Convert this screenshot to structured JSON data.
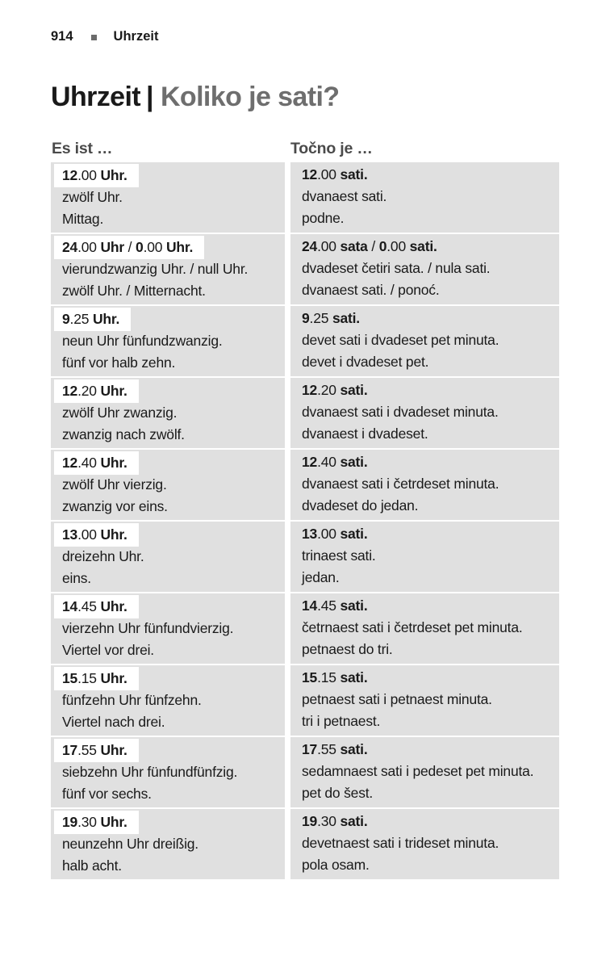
{
  "colors": {
    "text": "#1a1a1a",
    "title_accent": "#6e6e6e",
    "cell_bg": "#e0e0e0",
    "header_text": "#4a4a4a",
    "bullet": "#6b6b6b"
  },
  "running_header": {
    "page_number": "914",
    "section": "Uhrzeit"
  },
  "title": {
    "german": "Uhrzeit",
    "separator": "|",
    "croatian": "Koliko je sati?"
  },
  "column_headers": {
    "german": "Es ist …",
    "croatian": "Točno je …"
  },
  "table": {
    "rows": [
      {
        "de": {
          "time": [
            {
              "t": "12",
              "b": true
            },
            {
              "t": ".00 ",
              "b": false
            },
            {
              "t": "Uhr.",
              "b": true
            }
          ],
          "lines": [
            "zwölf Uhr.",
            "Mittag."
          ]
        },
        "hr": {
          "time": [
            {
              "t": "12",
              "b": true
            },
            {
              "t": ".00 ",
              "b": false
            },
            {
              "t": "sati.",
              "b": true
            }
          ],
          "lines": [
            "dvanaest sati.",
            "podne."
          ]
        }
      },
      {
        "de": {
          "time": [
            {
              "t": "24",
              "b": true
            },
            {
              "t": ".00 ",
              "b": false
            },
            {
              "t": "Uhr",
              "b": true
            },
            {
              "t": " / ",
              "b": false
            },
            {
              "t": "0",
              "b": true
            },
            {
              "t": ".00 ",
              "b": false
            },
            {
              "t": "Uhr.",
              "b": true
            }
          ],
          "lines": [
            "vierundzwanzig Uhr. / null Uhr.",
            "zwölf Uhr. / Mitternacht."
          ]
        },
        "hr": {
          "time": [
            {
              "t": "24",
              "b": true
            },
            {
              "t": ".00 ",
              "b": false
            },
            {
              "t": "sata",
              "b": true
            },
            {
              "t": " / ",
              "b": false
            },
            {
              "t": "0",
              "b": true
            },
            {
              "t": ".00 ",
              "b": false
            },
            {
              "t": "sati.",
              "b": true
            }
          ],
          "lines": [
            "dvadeset četiri sata. / nula sati.",
            "dvanaest sati. / ponoć."
          ]
        }
      },
      {
        "de": {
          "time": [
            {
              "t": "9",
              "b": true
            },
            {
              "t": ".25 ",
              "b": false
            },
            {
              "t": "Uhr.",
              "b": true
            }
          ],
          "lines": [
            "neun Uhr fünfundzwanzig.",
            "fünf vor halb zehn."
          ]
        },
        "hr": {
          "time": [
            {
              "t": "9",
              "b": true
            },
            {
              "t": ".25 ",
              "b": false
            },
            {
              "t": "sati.",
              "b": true
            }
          ],
          "lines": [
            "devet sati i dvadeset pet minuta.",
            "devet i dvadeset pet."
          ]
        }
      },
      {
        "de": {
          "time": [
            {
              "t": "12",
              "b": true
            },
            {
              "t": ".20 ",
              "b": false
            },
            {
              "t": "Uhr.",
              "b": true
            }
          ],
          "lines": [
            "zwölf Uhr zwanzig.",
            "zwanzig nach zwölf."
          ]
        },
        "hr": {
          "time": [
            {
              "t": "12",
              "b": true
            },
            {
              "t": ".20 ",
              "b": false
            },
            {
              "t": "sati.",
              "b": true
            }
          ],
          "lines": [
            "dvanaest sati i dvadeset minuta.",
            "dvanaest i dvadeset."
          ]
        }
      },
      {
        "de": {
          "time": [
            {
              "t": "12",
              "b": true
            },
            {
              "t": ".40 ",
              "b": false
            },
            {
              "t": "Uhr.",
              "b": true
            }
          ],
          "lines": [
            "zwölf Uhr vierzig.",
            "zwanzig vor eins."
          ]
        },
        "hr": {
          "time": [
            {
              "t": "12",
              "b": true
            },
            {
              "t": ".40 ",
              "b": false
            },
            {
              "t": "sati.",
              "b": true
            }
          ],
          "lines": [
            "dvanaest sati i četrdeset minuta.",
            "dvadeset do jedan."
          ]
        }
      },
      {
        "de": {
          "time": [
            {
              "t": "13",
              "b": true
            },
            {
              "t": ".00 ",
              "b": false
            },
            {
              "t": "Uhr.",
              "b": true
            }
          ],
          "lines": [
            "dreizehn Uhr.",
            "eins."
          ]
        },
        "hr": {
          "time": [
            {
              "t": "13",
              "b": true
            },
            {
              "t": ".00 ",
              "b": false
            },
            {
              "t": "sati.",
              "b": true
            }
          ],
          "lines": [
            "trinaest sati.",
            "jedan."
          ]
        }
      },
      {
        "de": {
          "time": [
            {
              "t": "14",
              "b": true
            },
            {
              "t": ".45 ",
              "b": false
            },
            {
              "t": "Uhr.",
              "b": true
            }
          ],
          "lines": [
            "vierzehn Uhr fünfundvierzig.",
            "Viertel vor drei."
          ]
        },
        "hr": {
          "time": [
            {
              "t": "14",
              "b": true
            },
            {
              "t": ".45 ",
              "b": false
            },
            {
              "t": "sati.",
              "b": true
            }
          ],
          "lines": [
            "četrnaest sati i četrdeset pet minuta.",
            "petnaest do tri."
          ]
        }
      },
      {
        "de": {
          "time": [
            {
              "t": "15",
              "b": true
            },
            {
              "t": ".15 ",
              "b": false
            },
            {
              "t": "Uhr.",
              "b": true
            }
          ],
          "lines": [
            "fünfzehn Uhr fünfzehn.",
            "Viertel nach drei."
          ]
        },
        "hr": {
          "time": [
            {
              "t": "15",
              "b": true
            },
            {
              "t": ".15 ",
              "b": false
            },
            {
              "t": "sati.",
              "b": true
            }
          ],
          "lines": [
            "petnaest sati i petnaest minuta.",
            "tri i petnaest."
          ]
        }
      },
      {
        "de": {
          "time": [
            {
              "t": "17",
              "b": true
            },
            {
              "t": ".55 ",
              "b": false
            },
            {
              "t": "Uhr.",
              "b": true
            }
          ],
          "lines": [
            "siebzehn Uhr fünfundfünfzig.",
            "fünf vor sechs."
          ]
        },
        "hr": {
          "time": [
            {
              "t": "17",
              "b": true
            },
            {
              "t": ".55 ",
              "b": false
            },
            {
              "t": "sati.",
              "b": true
            }
          ],
          "lines": [
            "sedamnaest sati i pedeset pet minuta.",
            "pet do šest."
          ]
        }
      },
      {
        "de": {
          "time": [
            {
              "t": "19",
              "b": true
            },
            {
              "t": ".30 ",
              "b": false
            },
            {
              "t": "Uhr.",
              "b": true
            }
          ],
          "lines": [
            "neunzehn Uhr dreißig.",
            "halb acht."
          ]
        },
        "hr": {
          "time": [
            {
              "t": "19",
              "b": true
            },
            {
              "t": ".30 ",
              "b": false
            },
            {
              "t": "sati.",
              "b": true
            }
          ],
          "lines": [
            "devetnaest sati i trideset minuta.",
            "pola osam."
          ]
        }
      }
    ]
  }
}
